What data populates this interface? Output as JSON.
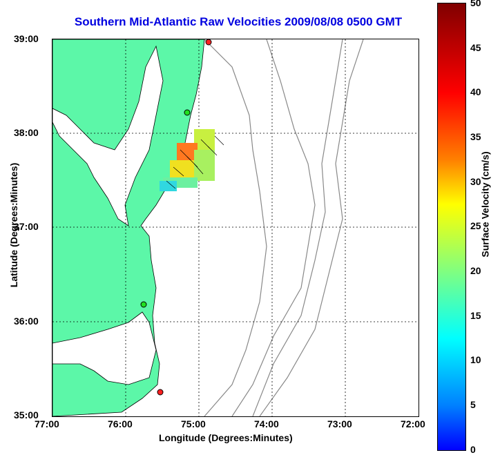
{
  "title": "Southern Mid-Atlantic Raw Velocities 2009/08/08 0500 GMT",
  "xlabel": "Longitude (Degrees:Minutes)",
  "ylabel": "Latitude (Degrees:Minutes)",
  "colorbar_label": "Surface Velocity (cm/s)",
  "xticks": [
    "77:00",
    "76:00",
    "75:00",
    "74:00",
    "73:00",
    "72:00"
  ],
  "yticks": [
    "39:00",
    "38:00",
    "37:00",
    "36:00",
    "35:00"
  ],
  "cbticks": [
    "50",
    "45",
    "40",
    "35",
    "30",
    "25",
    "20",
    "15",
    "10",
    "5",
    "0"
  ],
  "colors": {
    "land": "#5cf7a8",
    "title": "#0000e0",
    "station": "#ff2020",
    "station_green": "#20e020"
  }
}
